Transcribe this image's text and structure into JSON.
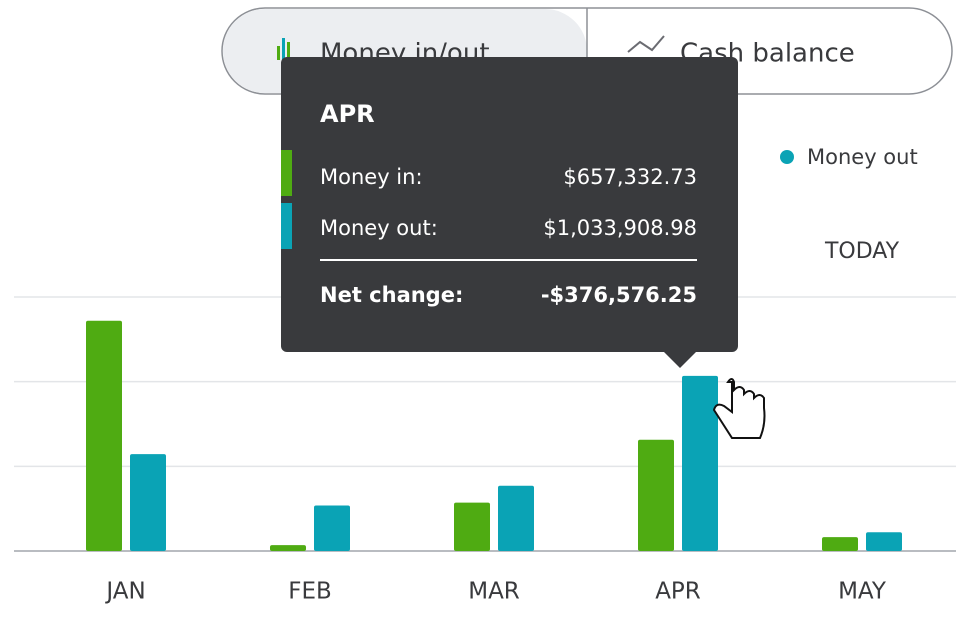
{
  "chart_data": {
    "type": "bar",
    "toggle": [
      "Money in/out",
      "Cash balance"
    ],
    "categories": [
      "JAN",
      "FEB",
      "MAR",
      "APR",
      "MAY"
    ],
    "series": [
      {
        "name": "Money in",
        "color": "#4fab12",
        "values": [
          1360000,
          35000,
          286000,
          657332.73,
          82000
        ]
      },
      {
        "name": "Money out",
        "color": "#0aa3b5",
        "values": [
          572000,
          269000,
          385000,
          1033908.98,
          111000
        ]
      }
    ],
    "ylim": [
      0,
      1500000
    ],
    "yticks": [
      0,
      500000,
      1000000,
      1500000
    ],
    "grid": true,
    "annotation": "TODAY",
    "tooltip": {
      "title": "APR",
      "rows": [
        {
          "label": "Money in:",
          "value": "$657,332.73"
        },
        {
          "label": "Money out:",
          "value": "$1,033,908.98"
        }
      ],
      "net": {
        "label": "Net change:",
        "value": "-$376,576.25"
      }
    }
  }
}
